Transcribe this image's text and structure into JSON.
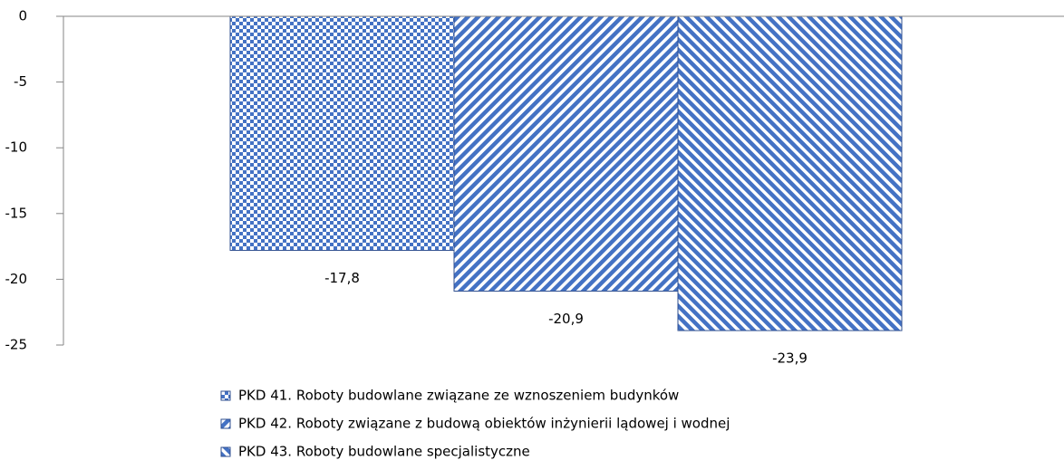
{
  "chart_data": {
    "type": "bar",
    "categories": [
      null
    ],
    "series": [
      {
        "name": "PKD 41. Roboty budowlane związane ze wznoszeniem budynków",
        "color": "#4472c4",
        "pattern": "checker",
        "values": [
          -17.8
        ],
        "value_labels": [
          "-17,8"
        ]
      },
      {
        "name": "PKD 42. Roboty związane z budową obiektów inżynierii lądowej i wodnej",
        "color": "#4472c4",
        "pattern": "diagonal-down",
        "values": [
          -20.9
        ],
        "value_labels": [
          "-20,9"
        ]
      },
      {
        "name": "PKD 43. Roboty budowlane specjalistyczne",
        "color": "#4472c4",
        "pattern": "diagonal-up",
        "values": [
          -23.9
        ],
        "value_labels": [
          "-23,9"
        ]
      }
    ],
    "ylim": [
      -25,
      0
    ],
    "yticks": [
      0,
      -5,
      -10,
      -15,
      -20,
      -25
    ],
    "grid": false,
    "legend": "bottom"
  }
}
